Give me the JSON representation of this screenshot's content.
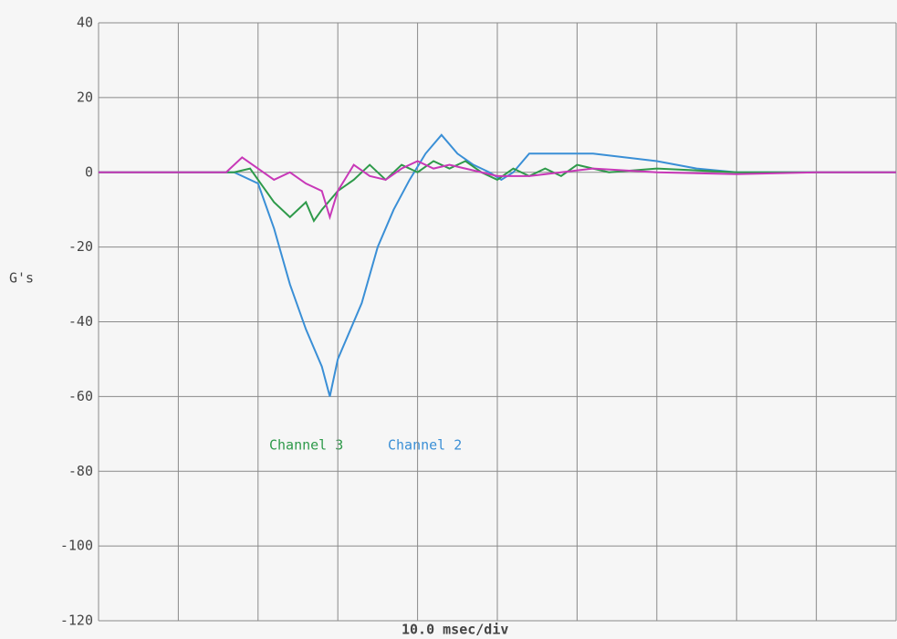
{
  "chart_data": {
    "type": "line",
    "x_label": "10.0 msec/div",
    "y_label": "G's",
    "xlim": [
      0,
      100
    ],
    "xticks": [
      0,
      10,
      20,
      30,
      40,
      50,
      60,
      70,
      80,
      90,
      100
    ],
    "ylim": [
      -120,
      40
    ],
    "yticks": [
      -120,
      -100,
      -80,
      -60,
      -40,
      -20,
      0,
      20,
      40
    ],
    "grid": true,
    "series": [
      {
        "name": "Channel 2",
        "color": "#3a8fd6",
        "x": [
          0,
          17,
          20,
          22,
          24,
          26,
          28,
          29,
          30,
          31,
          33,
          35,
          37,
          39,
          41,
          43,
          45,
          47,
          49,
          50.5,
          52,
          54,
          58,
          62,
          66,
          70,
          75,
          80,
          90,
          100
        ],
        "values": [
          0,
          0,
          -3,
          -15,
          -30,
          -42,
          -52,
          -60,
          -50,
          -45,
          -35,
          -20,
          -10,
          -2,
          5,
          10,
          5,
          2,
          0,
          -2,
          0,
          5,
          5,
          5,
          4,
          3,
          1,
          0,
          0,
          0
        ]
      },
      {
        "name": "Channel 3",
        "color": "#2e9a4a",
        "x": [
          0,
          17,
          19,
          20,
          22,
          24,
          26,
          27,
          28,
          30,
          32,
          34,
          36,
          38,
          40,
          42,
          44,
          46,
          48,
          50,
          52,
          54,
          56,
          58,
          60,
          64,
          70,
          80,
          90,
          100
        ],
        "values": [
          0,
          0,
          1,
          -2,
          -8,
          -12,
          -8,
          -13,
          -10,
          -5,
          -2,
          2,
          -2,
          2,
          0,
          3,
          1,
          3,
          0,
          -2,
          1,
          -1,
          1,
          -1,
          2,
          0,
          1,
          0,
          0,
          0
        ]
      },
      {
        "color": "#c838b8",
        "x": [
          0,
          16,
          18,
          20,
          22,
          24,
          26,
          28,
          29,
          30,
          32,
          34,
          36,
          38,
          40,
          42,
          44,
          46,
          48,
          50,
          54,
          58,
          62,
          70,
          80,
          90,
          100
        ],
        "values": [
          0,
          0,
          4,
          1,
          -2,
          0,
          -3,
          -5,
          -12,
          -5,
          2,
          -1,
          -2,
          1,
          3,
          1,
          2,
          1,
          0,
          -1,
          -1,
          0,
          1,
          0,
          -0.5,
          0,
          0
        ]
      }
    ]
  }
}
